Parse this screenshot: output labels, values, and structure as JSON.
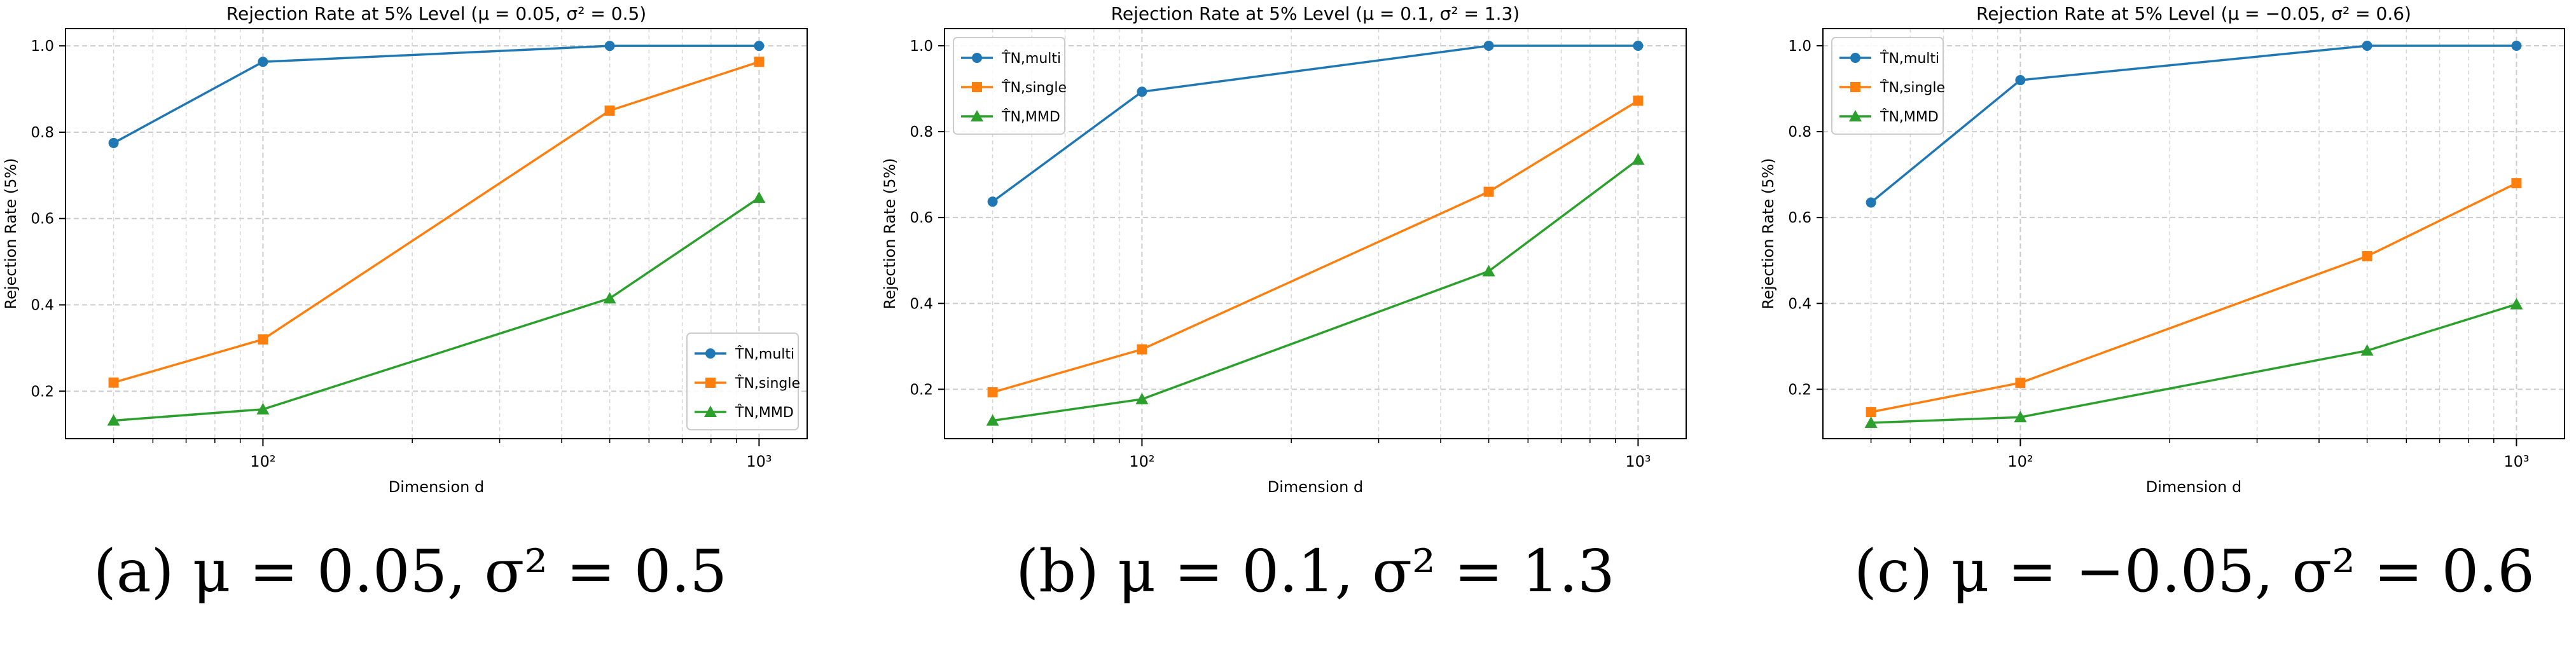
{
  "chart_data": [
    {
      "type": "line",
      "title": "Rejection Rate at 5% Level (μ = 0.05, σ² = 0.5)",
      "xlabel": "Dimension d",
      "ylabel": "Rejection Rate (5%)",
      "xscale": "log",
      "x": [
        50,
        100,
        500,
        1000
      ],
      "xlim": [
        40,
        1250
      ],
      "ylim": [
        0.09,
        1.04
      ],
      "yticks": [
        "0.2",
        "0.4",
        "0.6",
        "0.8",
        "1.0"
      ],
      "xticks": [
        "10²",
        "10³"
      ],
      "grid": true,
      "legend_position": "lower-right",
      "caption": "(a) μ = 0.05, σ² = 0.5",
      "series": [
        {
          "name": "T̂N,multi",
          "color": "#1f77b4",
          "marker": "circle",
          "values": [
            0.775,
            0.963,
            1.0,
            1.0
          ]
        },
        {
          "name": "T̂N,single",
          "color": "#ff7f0e",
          "marker": "square",
          "values": [
            0.22,
            0.32,
            0.85,
            0.963
          ]
        },
        {
          "name": "T̂N,MMD",
          "color": "#2ca02c",
          "marker": "triangle",
          "values": [
            0.132,
            0.158,
            0.415,
            0.648
          ]
        }
      ]
    },
    {
      "type": "line",
      "title": "Rejection Rate at 5% Level (μ = 0.1, σ² = 1.3)",
      "xlabel": "Dimension d",
      "ylabel": "Rejection Rate (5%)",
      "xscale": "log",
      "x": [
        50,
        100,
        500,
        1000
      ],
      "xlim": [
        40,
        1250
      ],
      "ylim": [
        0.085,
        1.04
      ],
      "yticks": [
        "0.2",
        "0.4",
        "0.6",
        "0.8",
        "1.0"
      ],
      "xticks": [
        "10²",
        "10³"
      ],
      "grid": true,
      "legend_position": "upper-left",
      "caption": "(b) μ = 0.1, σ² = 1.3",
      "series": [
        {
          "name": "T̂N,multi",
          "color": "#1f77b4",
          "marker": "circle",
          "values": [
            0.637,
            0.893,
            1.0,
            1.0
          ]
        },
        {
          "name": "T̂N,single",
          "color": "#ff7f0e",
          "marker": "square",
          "values": [
            0.193,
            0.293,
            0.66,
            0.872
          ]
        },
        {
          "name": "T̂N,MMD",
          "color": "#2ca02c",
          "marker": "triangle",
          "values": [
            0.127,
            0.177,
            0.475,
            0.735
          ]
        }
      ]
    },
    {
      "type": "line",
      "title": "Rejection Rate at 5% Level (μ = −0.05, σ² = 0.6)",
      "xlabel": "Dimension d",
      "ylabel": "Rejection Rate (5%)",
      "xscale": "log",
      "x": [
        50,
        100,
        500,
        1000
      ],
      "xlim": [
        40,
        1250
      ],
      "ylim": [
        0.085,
        1.04
      ],
      "yticks": [
        "0.2",
        "0.4",
        "0.6",
        "0.8",
        "1.0"
      ],
      "xticks": [
        "10²",
        "10³"
      ],
      "grid": true,
      "legend_position": "upper-left",
      "caption": "(c) μ = −0.05, σ² = 0.6",
      "series": [
        {
          "name": "T̂N,multi",
          "color": "#1f77b4",
          "marker": "circle",
          "values": [
            0.635,
            0.92,
            1.0,
            1.0
          ]
        },
        {
          "name": "T̂N,single",
          "color": "#ff7f0e",
          "marker": "square",
          "values": [
            0.147,
            0.215,
            0.51,
            0.68
          ]
        },
        {
          "name": "T̂N,MMD",
          "color": "#2ca02c",
          "marker": "triangle",
          "values": [
            0.122,
            0.135,
            0.29,
            0.398
          ]
        }
      ]
    }
  ]
}
